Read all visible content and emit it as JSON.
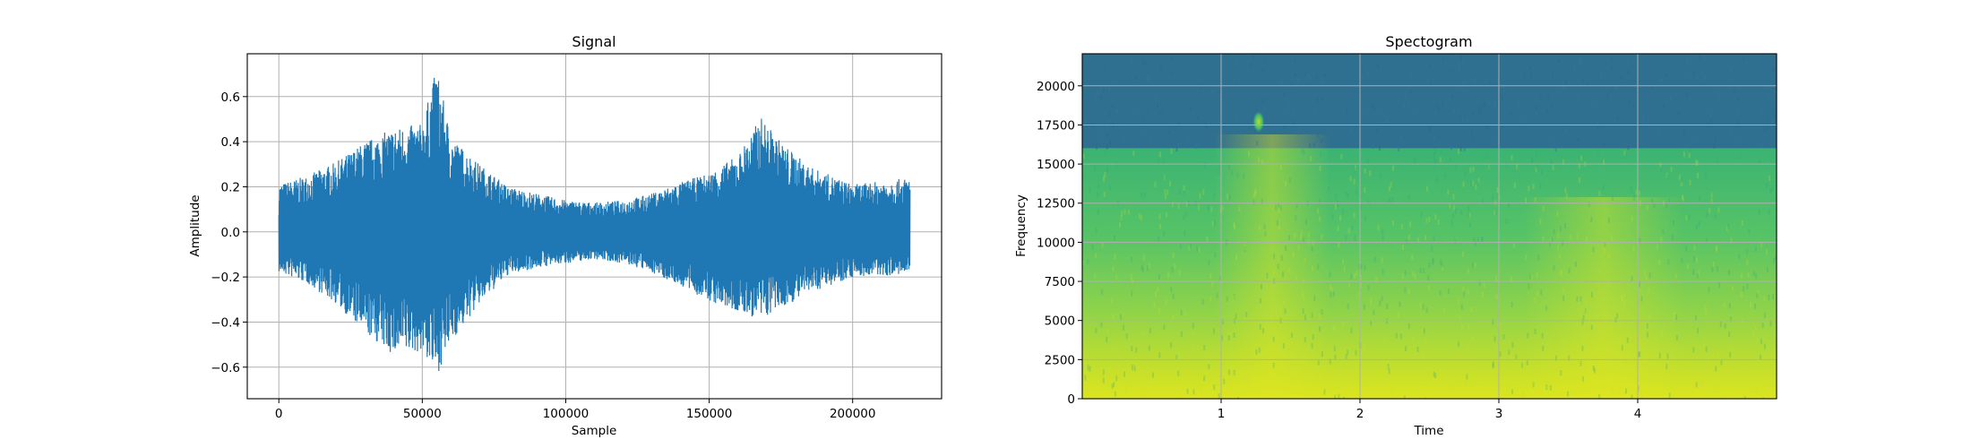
{
  "chart_data": [
    {
      "type": "line",
      "title": "Signal",
      "xlabel": "Sample",
      "ylabel": "Amplitude",
      "xlim": [
        -11000,
        231000
      ],
      "ylim": [
        -0.74,
        0.79
      ],
      "xticks": [
        0,
        50000,
        100000,
        150000,
        200000
      ],
      "yticks": [
        -0.6,
        -0.4,
        -0.2,
        0.0,
        0.2,
        0.4,
        0.6
      ],
      "xtick_labels": [
        "0",
        "50000",
        "100000",
        "150000",
        "200000"
      ],
      "ytick_labels": [
        "−0.6",
        "−0.4",
        "−0.2",
        "0.0",
        "0.2",
        "0.4",
        "0.6"
      ],
      "grid": true,
      "color": "#1f77b4",
      "series": [
        {
          "x": [
            0,
            10000,
            20000,
            30000,
            40000,
            50000,
            55000,
            60000,
            70000,
            80000,
            90000,
            100000,
            110000,
            120000,
            130000,
            140000,
            150000,
            160000,
            168000,
            175000,
            185000,
            200000,
            220000
          ],
          "upper": [
            0.21,
            0.25,
            0.31,
            0.4,
            0.46,
            0.48,
            0.73,
            0.42,
            0.3,
            0.2,
            0.17,
            0.14,
            0.13,
            0.14,
            0.17,
            0.22,
            0.26,
            0.34,
            0.51,
            0.4,
            0.29,
            0.21,
            0.24
          ],
          "lower": [
            -0.18,
            -0.23,
            -0.32,
            -0.45,
            -0.55,
            -0.53,
            -0.64,
            -0.49,
            -0.32,
            -0.19,
            -0.16,
            -0.14,
            -0.12,
            -0.14,
            -0.18,
            -0.24,
            -0.31,
            -0.36,
            -0.39,
            -0.34,
            -0.27,
            -0.2,
            -0.19
          ]
        }
      ]
    },
    {
      "type": "heatmap",
      "title": "Spectogram",
      "xlabel": "Time",
      "ylabel": "Frequency",
      "xlim": [
        0.0,
        5.0
      ],
      "ylim": [
        0,
        22050
      ],
      "xticks": [
        1,
        2,
        3,
        4
      ],
      "yticks": [
        0,
        2500,
        5000,
        7500,
        10000,
        12500,
        15000,
        17500,
        20000
      ],
      "xtick_labels": [
        "1",
        "2",
        "3",
        "4"
      ],
      "ytick_labels": [
        "0",
        "2500",
        "5000",
        "7500",
        "10000",
        "12500",
        "15000",
        "17500",
        "20000"
      ],
      "grid": true,
      "colormap": "viridis",
      "cutoff_frequency": 16000,
      "above_cutoff_color": "#2f6f8f",
      "low_freq_color": "#e0e620",
      "mid_freq_color": "#4cc26c",
      "feature_time": 1.27,
      "feature_frequency": 17700
    }
  ]
}
